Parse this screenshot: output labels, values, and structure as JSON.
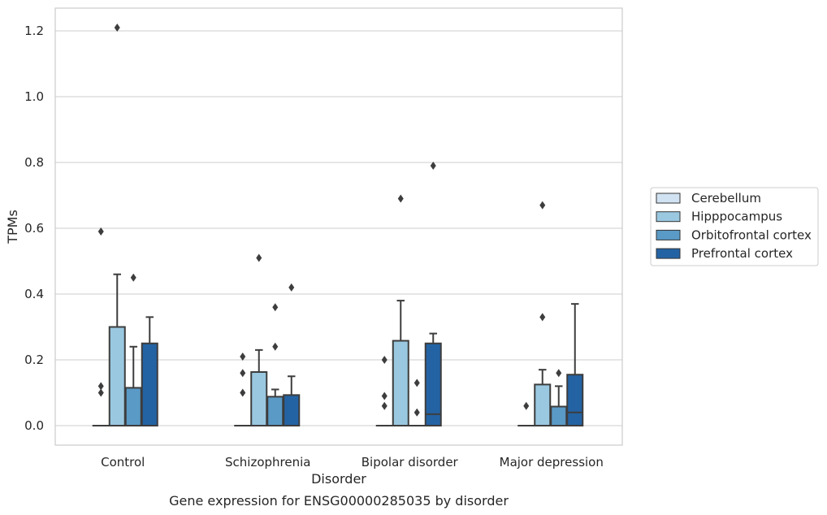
{
  "chart_data": {
    "type": "box",
    "title": "",
    "caption": "Gene expression for ENSG00000285035 by disorder",
    "xlabel": "Disorder",
    "ylabel": "TPMs",
    "ylim": [
      -0.06,
      1.27
    ],
    "yticks": [
      0.0,
      0.2,
      0.4,
      0.6,
      0.8,
      1.0,
      1.2
    ],
    "ytick_labels": [
      "0.0",
      "0.2",
      "0.4",
      "0.6",
      "0.8",
      "1.0",
      "1.2"
    ],
    "grid": "horizontal",
    "legend_position": "right",
    "categories": [
      "Control",
      "Schizophrenia",
      "Bipolar disorder",
      "Major depression"
    ],
    "series": [
      {
        "name": "Cerebellum",
        "color": "#d1e2f2",
        "boxes": [
          {
            "q1": 0.0,
            "median": 0.0,
            "q3": 0.0,
            "whisker_low": 0.0,
            "whisker_high": 0.0,
            "outliers": [
              0.1,
              0.12,
              0.59
            ]
          },
          {
            "q1": 0.0,
            "median": 0.0,
            "q3": 0.0,
            "whisker_low": 0.0,
            "whisker_high": 0.0,
            "outliers": [
              0.1,
              0.16,
              0.21
            ]
          },
          {
            "q1": 0.0,
            "median": 0.0,
            "q3": 0.0,
            "whisker_low": 0.0,
            "whisker_high": 0.0,
            "outliers": [
              0.06,
              0.09,
              0.2
            ]
          },
          {
            "q1": 0.0,
            "median": 0.0,
            "q3": 0.0,
            "whisker_low": 0.0,
            "whisker_high": 0.0,
            "outliers": [
              0.06
            ]
          }
        ]
      },
      {
        "name": "Hipppocampus",
        "color": "#9ac8e0",
        "boxes": [
          {
            "q1": 0.0,
            "median": 0.0,
            "q3": 0.3,
            "whisker_low": 0.0,
            "whisker_high": 0.46,
            "outliers": [
              1.21
            ]
          },
          {
            "q1": 0.0,
            "median": 0.0,
            "q3": 0.163,
            "whisker_low": 0.0,
            "whisker_high": 0.23,
            "outliers": [
              0.51
            ]
          },
          {
            "q1": 0.0,
            "median": 0.0,
            "q3": 0.258,
            "whisker_low": 0.0,
            "whisker_high": 0.38,
            "outliers": [
              0.69
            ]
          },
          {
            "q1": 0.0,
            "median": 0.0,
            "q3": 0.125,
            "whisker_low": 0.0,
            "whisker_high": 0.17,
            "outliers": [
              0.33,
              0.67
            ]
          }
        ]
      },
      {
        "name": "Orbitofrontal cortex",
        "color": "#5a9ac6",
        "boxes": [
          {
            "q1": 0.0,
            "median": 0.0,
            "q3": 0.115,
            "whisker_low": 0.0,
            "whisker_high": 0.24,
            "outliers": [
              0.45
            ]
          },
          {
            "q1": 0.0,
            "median": 0.0,
            "q3": 0.088,
            "whisker_low": 0.0,
            "whisker_high": 0.11,
            "outliers": [
              0.24,
              0.36
            ]
          },
          {
            "q1": 0.0,
            "median": 0.0,
            "q3": 0.0,
            "whisker_low": 0.0,
            "whisker_high": 0.0,
            "outliers": [
              0.04,
              0.13
            ]
          },
          {
            "q1": 0.0,
            "median": 0.0,
            "q3": 0.058,
            "whisker_low": 0.0,
            "whisker_high": 0.12,
            "outliers": [
              0.16
            ]
          }
        ]
      },
      {
        "name": "Prefrontal cortex",
        "color": "#2363a4",
        "boxes": [
          {
            "q1": 0.0,
            "median": 0.0,
            "q3": 0.25,
            "whisker_low": 0.0,
            "whisker_high": 0.33,
            "outliers": []
          },
          {
            "q1": 0.0,
            "median": 0.0,
            "q3": 0.093,
            "whisker_low": 0.0,
            "whisker_high": 0.15,
            "outliers": [
              0.42
            ]
          },
          {
            "q1": 0.0,
            "median": 0.035,
            "q3": 0.25,
            "whisker_low": 0.0,
            "whisker_high": 0.28,
            "outliers": [
              0.79
            ]
          },
          {
            "q1": 0.0,
            "median": 0.04,
            "q3": 0.155,
            "whisker_low": 0.0,
            "whisker_high": 0.37,
            "outliers": []
          }
        ]
      }
    ]
  }
}
